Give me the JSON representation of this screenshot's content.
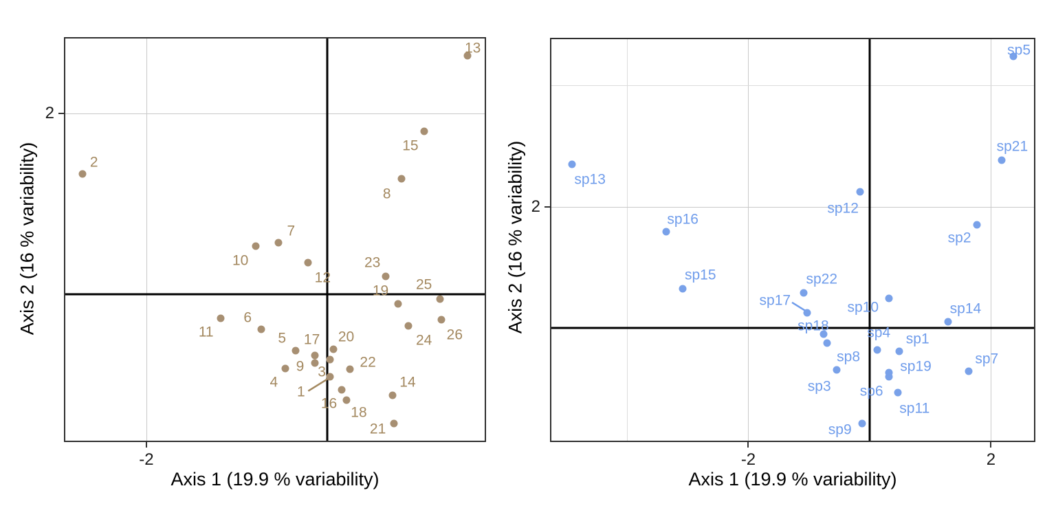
{
  "figure": {
    "background": "#ffffff"
  },
  "chart_data": [
    {
      "id": "site-scores",
      "type": "scatter",
      "xlabel": "Axis 1 (19.9 % variability)",
      "ylabel": "Axis 2 (16 % variability)",
      "xlim": [
        -2.912,
        1.757
      ],
      "ylim": [
        -1.635,
        2.844
      ],
      "grid": "on",
      "legend": "none",
      "point_color": "#a78f72",
      "label_color": "#a3885f",
      "zero_lines": true,
      "x_ticks": [
        {
          "value": -2,
          "label": "-2"
        }
      ],
      "y_ticks": [
        {
          "value": 2,
          "label": "2"
        }
      ],
      "grid_v": [
        {
          "value": -2,
          "kind": "major"
        }
      ],
      "grid_h": [
        {
          "value": 2,
          "kind": "major"
        }
      ],
      "points": [
        {
          "label": "1",
          "x": 0.03,
          "y": -0.91,
          "lx": -0.29,
          "ly": -1.08
        },
        {
          "label": "2",
          "x": -2.71,
          "y": 1.33,
          "lx": -2.58,
          "ly": 1.46
        },
        {
          "label": "3",
          "x": 0.03,
          "y": -0.72,
          "lx": -0.06,
          "ly": -0.86
        },
        {
          "label": "4",
          "x": -0.46,
          "y": -0.82,
          "lx": -0.59,
          "ly": -0.97
        },
        {
          "label": "5",
          "x": -0.35,
          "y": -0.62,
          "lx": -0.5,
          "ly": -0.49
        },
        {
          "label": "6",
          "x": -0.73,
          "y": -0.39,
          "lx": -0.88,
          "ly": -0.26
        },
        {
          "label": "7",
          "x": -0.54,
          "y": 0.57,
          "lx": -0.4,
          "ly": 0.7
        },
        {
          "label": "8",
          "x": 0.82,
          "y": 1.28,
          "lx": 0.66,
          "ly": 1.11
        },
        {
          "label": "9",
          "x": -0.14,
          "y": -0.76,
          "lx": -0.3,
          "ly": -0.8
        },
        {
          "label": "10",
          "x": -0.79,
          "y": 0.53,
          "lx": -0.96,
          "ly": 0.37
        },
        {
          "label": "11",
          "x": -1.18,
          "y": -0.27,
          "lx": -1.34,
          "ly": -0.42
        },
        {
          "label": "12",
          "x": -0.21,
          "y": 0.35,
          "lx": -0.05,
          "ly": 0.18
        },
        {
          "label": "13",
          "x": 1.55,
          "y": 2.64,
          "lx": 1.61,
          "ly": 2.72
        },
        {
          "label": "14",
          "x": 0.72,
          "y": -1.12,
          "lx": 0.89,
          "ly": -0.97
        },
        {
          "label": "15",
          "x": 1.07,
          "y": 1.8,
          "lx": 0.92,
          "ly": 1.64
        },
        {
          "label": "16",
          "x": 0.16,
          "y": -1.06,
          "lx": 0.02,
          "ly": -1.21
        },
        {
          "label": "17",
          "x": -0.14,
          "y": -0.68,
          "lx": -0.17,
          "ly": -0.5
        },
        {
          "label": "18",
          "x": 0.21,
          "y": -1.17,
          "lx": 0.35,
          "ly": -1.31
        },
        {
          "label": "19",
          "x": 0.78,
          "y": -0.11,
          "lx": 0.59,
          "ly": 0.04
        },
        {
          "label": "20",
          "x": 0.07,
          "y": -0.61,
          "lx": 0.21,
          "ly": -0.47
        },
        {
          "label": "21",
          "x": 0.74,
          "y": -1.43,
          "lx": 0.56,
          "ly": -1.49
        },
        {
          "label": "22",
          "x": 0.25,
          "y": -0.83,
          "lx": 0.45,
          "ly": -0.75
        },
        {
          "label": "23",
          "x": 0.65,
          "y": 0.2,
          "lx": 0.5,
          "ly": 0.35
        },
        {
          "label": "24",
          "x": 0.9,
          "y": -0.35,
          "lx": 1.07,
          "ly": -0.51
        },
        {
          "label": "25",
          "x": 1.25,
          "y": -0.05,
          "lx": 1.07,
          "ly": 0.11
        },
        {
          "label": "26",
          "x": 1.26,
          "y": -0.28,
          "lx": 1.41,
          "ly": -0.45
        }
      ],
      "segments": [
        {
          "x1": -0.21,
          "y1": -1.07,
          "x2": 0.0,
          "y2": -0.94
        }
      ]
    },
    {
      "id": "species-scores",
      "type": "scatter",
      "xlabel": "Axis 1 (19.9 % variability)",
      "ylabel": "Axis 2 (16 % variability)",
      "xlim": [
        -5.269,
        2.731
      ],
      "ylim": [
        -1.881,
        4.782
      ],
      "grid": "on",
      "legend": "none",
      "point_color": "#79a1e9",
      "label_color": "#6f9ceb",
      "zero_lines": true,
      "x_ticks": [
        {
          "value": -2,
          "label": "-2"
        },
        {
          "value": 2,
          "label": "2"
        }
      ],
      "y_ticks": [
        {
          "value": 2,
          "label": "2"
        }
      ],
      "grid_v": [
        {
          "value": -4,
          "kind": "minor"
        },
        {
          "value": -2,
          "kind": "major"
        },
        {
          "value": 2,
          "kind": "major"
        }
      ],
      "grid_h": [
        {
          "value": 2,
          "kind": "major"
        },
        {
          "value": 4,
          "kind": "minor"
        }
      ],
      "points": [
        {
          "label": "sp1",
          "x": 0.49,
          "y": -0.39,
          "lx": 0.79,
          "ly": -0.18
        },
        {
          "label": "sp2",
          "x": 1.77,
          "y": 1.7,
          "lx": 1.48,
          "ly": 1.48
        },
        {
          "label": "sp3",
          "x": -0.54,
          "y": -0.69,
          "lx": -0.83,
          "ly": -0.96
        },
        {
          "label": "sp4",
          "x": 0.12,
          "y": -0.36,
          "lx": 0.15,
          "ly": -0.08
        },
        {
          "label": "sp5",
          "x": 2.37,
          "y": 4.48,
          "lx": 2.46,
          "ly": 4.58
        },
        {
          "label": "sp6",
          "x": 0.32,
          "y": -0.81,
          "lx": 0.03,
          "ly": -1.04
        },
        {
          "label": "sp7",
          "x": 1.63,
          "y": -0.71,
          "lx": 1.93,
          "ly": -0.51
        },
        {
          "label": "sp8",
          "x": -0.7,
          "y": -0.25,
          "lx": -0.35,
          "ly": -0.48
        },
        {
          "label": "sp9",
          "x": -0.12,
          "y": -1.58,
          "lx": -0.49,
          "ly": -1.68
        },
        {
          "label": "sp10",
          "x": 0.32,
          "y": 0.49,
          "lx": -0.11,
          "ly": 0.34
        },
        {
          "label": "sp11",
          "x": 0.46,
          "y": -1.07,
          "lx": 0.74,
          "ly": -1.33
        },
        {
          "label": "sp12",
          "x": -0.16,
          "y": 2.24,
          "lx": -0.44,
          "ly": 1.97
        },
        {
          "label": "sp13",
          "x": -4.91,
          "y": 2.7,
          "lx": -4.61,
          "ly": 2.45
        },
        {
          "label": "sp14",
          "x": 1.29,
          "y": 0.1,
          "lx": 1.58,
          "ly": 0.32
        },
        {
          "label": "sp15",
          "x": -3.08,
          "y": 0.65,
          "lx": -2.79,
          "ly": 0.87
        },
        {
          "label": "sp16",
          "x": -3.35,
          "y": 1.59,
          "lx": -3.08,
          "ly": 1.79
        },
        {
          "label": "sp17",
          "x": -1.03,
          "y": 0.25,
          "lx": -1.56,
          "ly": 0.45
        },
        {
          "label": "sp18",
          "x": -0.76,
          "y": -0.1,
          "lx": -0.93,
          "ly": 0.03
        },
        {
          "label": "sp19",
          "x": 0.32,
          "y": -0.74,
          "lx": 0.76,
          "ly": -0.64
        },
        {
          "label": "sp21",
          "x": 2.18,
          "y": 2.77,
          "lx": 2.35,
          "ly": 2.99
        },
        {
          "label": "sp22",
          "x": -1.09,
          "y": 0.58,
          "lx": -0.79,
          "ly": 0.8
        }
      ],
      "segments": [
        {
          "x1": -1.28,
          "y1": 0.42,
          "x2": -1.07,
          "y2": 0.29
        }
      ]
    }
  ]
}
